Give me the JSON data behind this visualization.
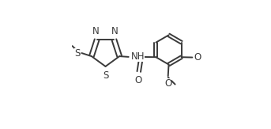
{
  "background_color": "#ffffff",
  "line_color": "#3a3a3a",
  "line_width": 1.4,
  "font_size": 8.5,
  "figsize": [
    3.43,
    1.63
  ],
  "dpi": 100,
  "xlim": [
    0.0,
    1.0
  ],
  "ylim": [
    0.0,
    1.0
  ]
}
